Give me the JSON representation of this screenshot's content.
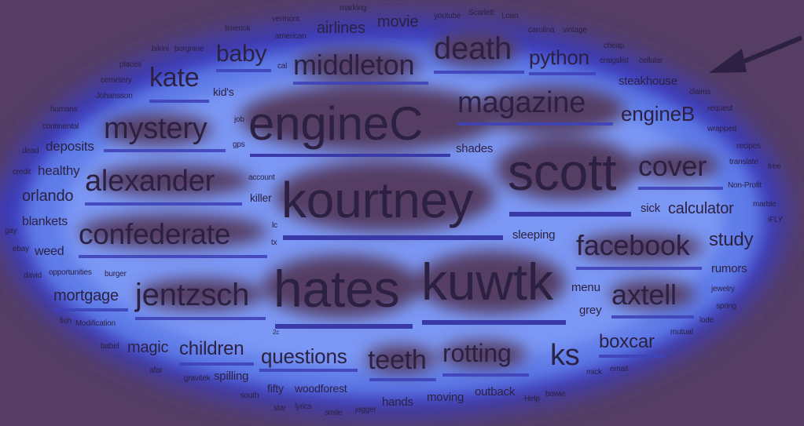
{
  "colors": {
    "background": "#553d63",
    "glow_inner": "#6e8cf2",
    "glow_outer": "#3b3bbe",
    "word": "#2c2142",
    "bar": "#3a39a8"
  },
  "arrow_icon": "arrow-pointing-left",
  "words": {
    "engineC": "engineC",
    "kourtney": "kourtney",
    "scott": "scott",
    "hates": "hates",
    "kuwtk": "kuwtk",
    "middleton": "middleton",
    "death": "death",
    "magazine": "magazine",
    "mystery": "mystery",
    "alexander": "alexander",
    "confederate": "confederate",
    "jentzsch": "jentzsch",
    "facebook": "facebook",
    "axtell": "axtell",
    "cover": "cover",
    "kate": "kate",
    "baby": "baby",
    "python": "python",
    "engineB": "engineB",
    "teeth": "teeth",
    "rotting": "rotting",
    "ks": "ks",
    "children": "children",
    "questions": "questions",
    "boxcar": "boxcar",
    "study": "study",
    "calculator": "calculator",
    "mortgage": "mortgage",
    "magic": "magic",
    "orlando": "orlando",
    "deposits": "deposits",
    "healthy": "healthy",
    "blankets": "blankets",
    "weed": "weed",
    "airlines": "airlines",
    "movie": "movie",
    "steakhouse": "steakhouse",
    "shades": "shades",
    "sleeping": "sleeping",
    "sick": "sick",
    "menu": "menu",
    "grey": "grey",
    "rumors": "rumors",
    "spilling": "spilling",
    "woodforest": "woodforest",
    "hands": "hands",
    "moving": "moving",
    "outback": "outback",
    "fifty": "fifty",
    "kids": "kid's",
    "killer": "killer",
    "humans": "humans",
    "continental": "continental",
    "cemetery": "cemetery",
    "johansson": "Johansson",
    "places": "places",
    "bikini": "bikini",
    "borgnine": "borgnine",
    "limerick": "limerick",
    "vermont": "vermont",
    "american": "american",
    "marking": "marking",
    "youtube": "youtube",
    "scarlett": "Scarlett",
    "loan": "Loan",
    "carolina": "carolina",
    "vintage": "vintage",
    "cheap": "cheap",
    "craigslist": "craigslist",
    "cellular": "cellular",
    "claims": "claims",
    "request": "request",
    "wrapped": "wrapped",
    "recipes": "recipes",
    "translate": "translate",
    "free": "free",
    "nonprofit": "Non-Profit",
    "marble": "marble",
    "ifly": "iFLY",
    "dead": "dead",
    "credit": "credit",
    "gay": "gay",
    "ebay": "ebay",
    "david": "david",
    "opportunities": "opportunities",
    "burger": "burger",
    "fish": "fish",
    "modification": "Modification",
    "babel": "babel",
    "afar": "afar",
    "gravitek": "gravitek",
    "south": "south",
    "star": "star",
    "lyrics": "lyrics",
    "smile": "smile",
    "jagger": "jagger",
    "help": "Help",
    "bowie": "bowie",
    "mick": "mick",
    "email": "email",
    "mutual": "mutual",
    "lode": "lode",
    "spring": "spring",
    "jewelry": "jewelry",
    "job": "job",
    "gps": "gps",
    "account": "account",
    "cal": "cal",
    "small_a": "tx",
    "small_b": "lc",
    "small_c": "2c"
  }
}
